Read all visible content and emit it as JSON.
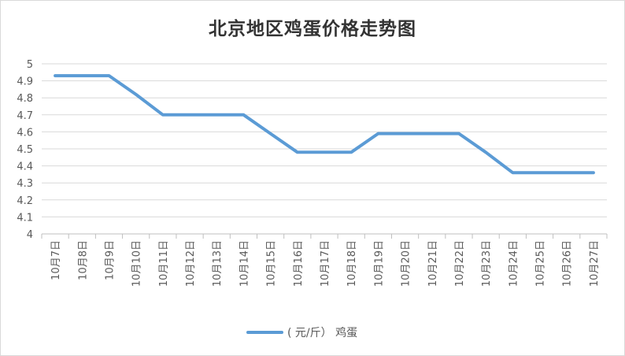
{
  "chart_data": {
    "type": "line",
    "title": "北京地区鸡蛋价格走势图",
    "categories": [
      "10月7日",
      "10月8日",
      "10月9日",
      "10月10日",
      "10月11日",
      "10月12日",
      "10月13日",
      "10月14日",
      "10月15日",
      "10月16日",
      "10月17日",
      "10月18日",
      "10月19日",
      "10月20日",
      "10月21日",
      "10月22日",
      "10月23日",
      "10月24日",
      "10月25日",
      "10月26日",
      "10月27日"
    ],
    "series": [
      {
        "name": "( 元/斤）  鸡蛋",
        "color": "#5B9BD5",
        "values": [
          4.93,
          4.93,
          4.93,
          4.82,
          4.7,
          4.7,
          4.7,
          4.7,
          4.59,
          4.48,
          4.48,
          4.48,
          4.59,
          4.59,
          4.59,
          4.59,
          4.48,
          4.36,
          4.36,
          4.36,
          4.36
        ]
      }
    ],
    "xlabel": "",
    "ylabel": "",
    "ylim": [
      4,
      5
    ],
    "yticks": [
      "4",
      "4.1",
      "4.2",
      "4.3",
      "4.4",
      "4.5",
      "4.6",
      "4.7",
      "4.8",
      "4.9",
      "5"
    ],
    "grid": true,
    "legend_position": "bottom"
  }
}
